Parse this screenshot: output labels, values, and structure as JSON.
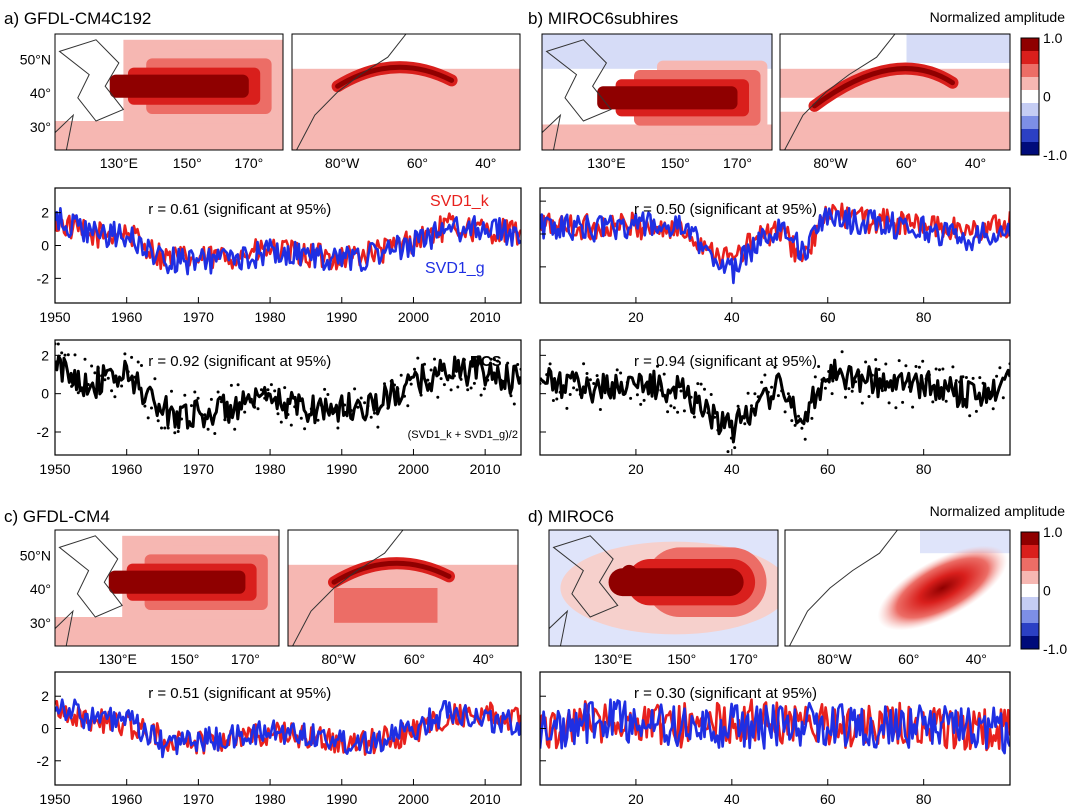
{
  "colors": {
    "svd1_k": "#e8211d",
    "svd1_g": "#1f2fe3",
    "bcs": "#000000",
    "coast": "#333333",
    "colorbar": [
      "#000b7a",
      "#2b40c4",
      "#7d8fe6",
      "#c5cdf4",
      "#ffffff",
      "#f6b7b2",
      "#ec6d66",
      "#d91f1c",
      "#8f0000"
    ]
  },
  "groups": [
    {
      "id": "a",
      "title": "a) GFDL-CM4C192",
      "colorbar_label": "",
      "map_style": "patchy"
    },
    {
      "id": "b",
      "title": "b) MIROC6subhires",
      "colorbar_label": "Normalized amplitude",
      "map_style": "patchy"
    },
    {
      "id": "c",
      "title": "c) GFDL-CM4",
      "colorbar_label": "",
      "map_style": "patchy"
    },
    {
      "id": "d",
      "title": "d) MIROC6",
      "colorbar_label": "Normalized amplitude",
      "map_style": "smooth"
    }
  ],
  "map_ticks": {
    "pacific_x": [
      "130°E",
      "150°",
      "170°"
    ],
    "atlantic_x": [
      "80°W",
      "60°",
      "40°"
    ],
    "lat_y": [
      "50°N",
      "40°",
      "30°"
    ]
  },
  "colorbar_ticks": [
    "1.0",
    "0",
    "-1.0"
  ],
  "legend": {
    "svd1_k": "SVD1_k",
    "svd1_g": "SVD1_g",
    "bcs": "BCS",
    "formula": "(SVD1_k + SVD1_g)/2"
  },
  "chart_data": [
    {
      "type": "line",
      "panel": "a-svd",
      "r_label": "r = 0.61 (significant at 95%)",
      "x_range": [
        1950,
        2015
      ],
      "ylim": [
        -3.5,
        3.5
      ],
      "yticks": [
        2,
        0,
        -2
      ],
      "xticks": [
        1950,
        1960,
        1970,
        1980,
        1990,
        2000,
        2010
      ],
      "series": [
        {
          "name": "SVD1_k",
          "key": "svd1_k",
          "x": [
            1950,
            1955,
            1960,
            1965,
            1970,
            1975,
            1980,
            1985,
            1990,
            1995,
            2000,
            2005,
            2010,
            2015
          ],
          "values": [
            1.5,
            0.6,
            0.8,
            -0.7,
            -0.9,
            -0.6,
            -0.3,
            -0.6,
            -0.7,
            -0.4,
            0.3,
            1.2,
            0.9,
            0.8
          ]
        },
        {
          "name": "SVD1_g",
          "key": "svd1_g",
          "x": [
            1950,
            1955,
            1960,
            1965,
            1970,
            1975,
            1980,
            1985,
            1990,
            1995,
            2000,
            2005,
            2010,
            2015
          ],
          "values": [
            1.6,
            0.7,
            0.6,
            -0.9,
            -1.0,
            -0.8,
            -0.4,
            -0.5,
            -0.9,
            -0.6,
            0.1,
            1.0,
            1.1,
            0.6
          ]
        }
      ]
    },
    {
      "type": "line",
      "panel": "b-svd",
      "r_label": "r = 0.50 (significant at 95%)",
      "x_range": [
        0,
        98
      ],
      "ylim": [
        -4.2,
        2.8
      ],
      "yticks": [],
      "xticks": [
        20,
        40,
        60,
        80
      ],
      "series": [
        {
          "name": "SVD1_k",
          "key": "svd1_k",
          "x": [
            0,
            10,
            20,
            30,
            35,
            40,
            45,
            50,
            55,
            60,
            65,
            70,
            80,
            90,
            98
          ],
          "values": [
            0.6,
            0.4,
            0.5,
            0.2,
            -0.8,
            -1.6,
            -0.3,
            0.2,
            -1.5,
            1.3,
            1.0,
            0.8,
            0.5,
            0.2,
            0.6
          ]
        },
        {
          "name": "SVD1_g",
          "key": "svd1_g",
          "x": [
            0,
            10,
            20,
            30,
            35,
            40,
            45,
            50,
            55,
            60,
            65,
            70,
            80,
            90,
            98
          ],
          "values": [
            0.5,
            0.3,
            0.6,
            0.3,
            -1.0,
            -2.3,
            -0.6,
            0.6,
            -1.2,
            1.2,
            0.8,
            0.7,
            0.3,
            -0.3,
            0.5
          ]
        }
      ]
    },
    {
      "type": "line",
      "panel": "a-bcs",
      "r_label": "r = 0.92 (significant at 95%)",
      "x_range": [
        1950,
        2015
      ],
      "ylim": [
        -3.2,
        2.8
      ],
      "yticks": [
        2,
        0,
        -2
      ],
      "xticks": [
        1950,
        1960,
        1970,
        1980,
        1990,
        2000,
        2010
      ],
      "series": [
        {
          "name": "BCS",
          "key": "bcs",
          "x": [
            1950,
            1955,
            1960,
            1965,
            1970,
            1975,
            1980,
            1985,
            1990,
            1995,
            2000,
            2005,
            2010,
            2015
          ],
          "values": [
            1.4,
            0.5,
            1.0,
            -0.9,
            -1.1,
            -0.7,
            -0.4,
            -0.7,
            -0.8,
            -0.5,
            0.5,
            1.3,
            1.1,
            0.6
          ]
        }
      ]
    },
    {
      "type": "line",
      "panel": "b-bcs",
      "r_label": "r = 0.94 (significant at 95%)",
      "x_range": [
        0,
        98
      ],
      "ylim": [
        -3.2,
        2.8
      ],
      "yticks": [],
      "xticks": [
        20,
        40,
        60,
        80
      ],
      "series": [
        {
          "name": "",
          "key": "bcs",
          "x": [
            0,
            10,
            20,
            30,
            35,
            40,
            45,
            50,
            55,
            60,
            65,
            70,
            80,
            90,
            98
          ],
          "values": [
            0.6,
            0.3,
            0.5,
            0.2,
            -0.9,
            -2.0,
            -0.4,
            0.3,
            -1.4,
            1.3,
            0.9,
            0.6,
            0.4,
            0.0,
            0.6
          ]
        }
      ]
    },
    {
      "type": "line",
      "panel": "c-svd",
      "r_label": "r = 0.51 (significant at 95%)",
      "x_range": [
        1950,
        2015
      ],
      "ylim": [
        -3.5,
        3.5
      ],
      "yticks": [
        2,
        0,
        -2
      ],
      "xticks": [
        1950,
        1960,
        1970,
        1980,
        1990,
        2000,
        2010
      ],
      "series": [
        {
          "name": "SVD1_k",
          "key": "svd1_k",
          "x": [
            1950,
            1955,
            1960,
            1965,
            1970,
            1975,
            1980,
            1985,
            1990,
            1995,
            2000,
            2005,
            2010,
            2015
          ],
          "values": [
            1.4,
            0.5,
            0.3,
            -0.6,
            -0.8,
            -0.5,
            -0.3,
            -0.5,
            -1.0,
            -0.8,
            -0.2,
            0.8,
            0.9,
            0.4
          ]
        },
        {
          "name": "SVD1_g",
          "key": "svd1_g",
          "x": [
            1950,
            1955,
            1960,
            1965,
            1970,
            1975,
            1980,
            1985,
            1990,
            1995,
            2000,
            2005,
            2010,
            2015
          ],
          "values": [
            1.6,
            0.6,
            0.5,
            -1.0,
            -0.7,
            -0.6,
            -0.2,
            -0.3,
            -0.8,
            -0.7,
            -0.1,
            1.2,
            0.6,
            0.2
          ]
        }
      ]
    },
    {
      "type": "line",
      "panel": "d-svd",
      "r_label": "r = 0.30 (significant at 95%)",
      "x_range": [
        0,
        98
      ],
      "ylim": [
        -3.5,
        3.5
      ],
      "yticks": [],
      "xticks": [
        20,
        40,
        60,
        80
      ],
      "series": [
        {
          "name": "SVD1_k",
          "key": "svd1_k",
          "x": [
            0,
            10,
            20,
            30,
            40,
            50,
            60,
            70,
            80,
            90,
            98
          ],
          "values": [
            -0.2,
            0.6,
            0.3,
            0.2,
            0.4,
            0.5,
            0.1,
            0.3,
            0.2,
            -0.1,
            0.0
          ]
        },
        {
          "name": "SVD1_g",
          "key": "svd1_g",
          "x": [
            0,
            10,
            20,
            30,
            40,
            50,
            60,
            70,
            80,
            90,
            98
          ],
          "values": [
            -0.1,
            0.3,
            0.5,
            0.0,
            0.2,
            0.1,
            0.3,
            0.0,
            0.2,
            0.1,
            -0.2
          ]
        }
      ]
    }
  ]
}
